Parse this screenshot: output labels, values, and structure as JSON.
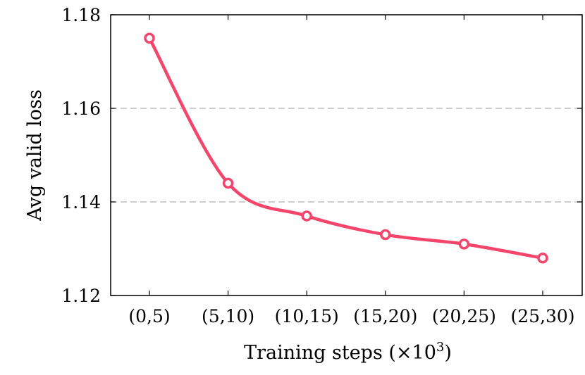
{
  "chart_data": {
    "type": "line",
    "title": "",
    "xlabel": "Training steps (×10",
    "xlabel_superscript": "3",
    "xlabel_suffix": ")",
    "ylabel": "Avg valid loss",
    "categories": [
      "(0,5)",
      "(5,10)",
      "(10,15)",
      "(15,20)",
      "(20,25)",
      "(25,30)"
    ],
    "series": [
      {
        "values": [
          1.175,
          1.144,
          1.137,
          1.133,
          1.131,
          1.128
        ]
      }
    ],
    "ylim": [
      1.12,
      1.18
    ],
    "yticks": [
      "1.12",
      "1.14",
      "1.16",
      "1.18"
    ],
    "ytick_values": [
      1.12,
      1.14,
      1.16,
      1.18
    ],
    "grid": "horizontal dashed",
    "legend": "none",
    "line_color": "#f5456a",
    "marker": "open circle",
    "smooth": true
  }
}
